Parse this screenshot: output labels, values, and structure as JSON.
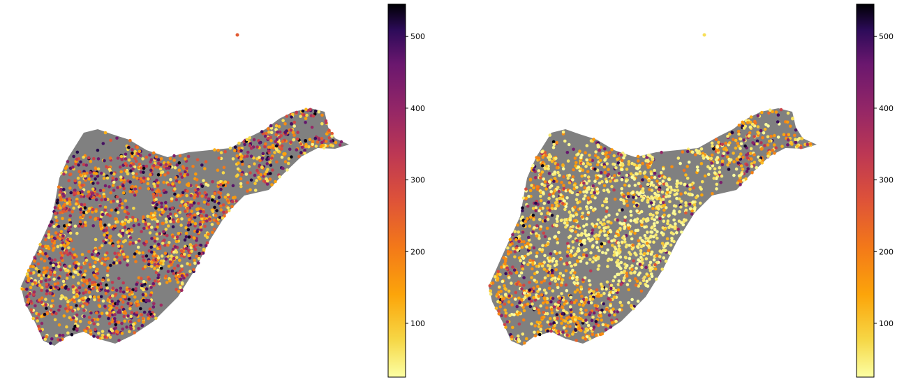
{
  "chart_data": [
    {
      "type": "scatter",
      "title": "",
      "xlabel": "",
      "ylabel": "",
      "axes_visible": false,
      "colormap": "inferno_r",
      "background_polygon_color": "#808080",
      "colorbar": {
        "range": [
          25,
          545
        ],
        "ticks": [
          100,
          200,
          300,
          400,
          500
        ],
        "tick_labels": [
          "100",
          "200",
          "300",
          "400",
          "500"
        ]
      },
      "value_distribution": "mixed: many dark purple/black high values (300–545) interleaved with orange and yellow",
      "series": [
        {
          "values_summary": {
            "min": 25,
            "max": 545,
            "dominant_range": [
              100,
              400
            ]
          }
        }
      ]
    },
    {
      "type": "scatter",
      "title": "",
      "xlabel": "",
      "ylabel": "",
      "axes_visible": false,
      "colormap": "inferno_r",
      "background_polygon_color": "#808080",
      "colorbar": {
        "range": [
          25,
          545
        ],
        "ticks": [
          100,
          200,
          300,
          400,
          500
        ],
        "tick_labels": [
          "100",
          "200",
          "300",
          "400",
          "500"
        ]
      },
      "value_distribution": "mostly pale yellow low values (25–100) in the core, orange/purple higher values along the edges",
      "series": [
        {
          "values_summary": {
            "min": 25,
            "max": 545,
            "dominant_range": [
              25,
              150
            ]
          }
        }
      ]
    }
  ]
}
